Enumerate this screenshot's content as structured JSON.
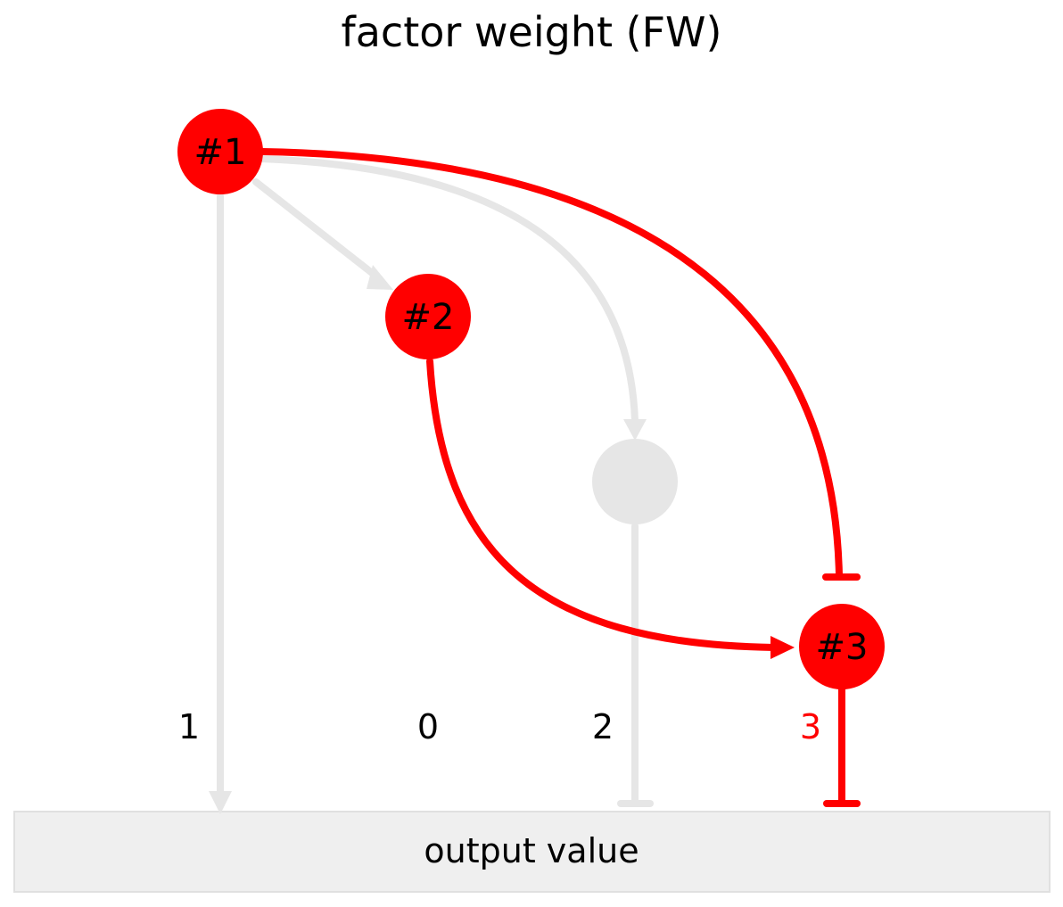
{
  "title": "factor weight (FW)",
  "colors": {
    "active": "#ff0000",
    "inactive": "#e6e6e6",
    "output_box_fill": "#efefef",
    "output_box_stroke": "#e0e0e0",
    "text": "#000000"
  },
  "nodes": [
    {
      "id": "n1",
      "label": "#1",
      "active": true
    },
    {
      "id": "n2",
      "label": "#2",
      "active": true
    },
    {
      "id": "n_inactive",
      "label": "",
      "active": false
    },
    {
      "id": "n3",
      "label": "#3",
      "active": true
    }
  ],
  "edges": [
    {
      "from": "n1",
      "to": "output",
      "type": "activation",
      "active": false
    },
    {
      "from": "n1",
      "to": "n2",
      "type": "activation",
      "active": false
    },
    {
      "from": "n1",
      "to": "n_inactive",
      "type": "activation",
      "active": false
    },
    {
      "from": "n1",
      "to": "n3",
      "type": "inhibition",
      "active": true
    },
    {
      "from": "n2",
      "to": "n3",
      "type": "activation",
      "active": true
    },
    {
      "from": "n_inactive",
      "to": "output",
      "type": "inhibition",
      "active": false
    },
    {
      "from": "n3",
      "to": "output",
      "type": "inhibition",
      "active": true
    }
  ],
  "weights": [
    {
      "value": "1",
      "highlighted": false
    },
    {
      "value": "0",
      "highlighted": false
    },
    {
      "value": "2",
      "highlighted": false
    },
    {
      "value": "3",
      "highlighted": true
    }
  ],
  "output": {
    "label": "output value"
  }
}
